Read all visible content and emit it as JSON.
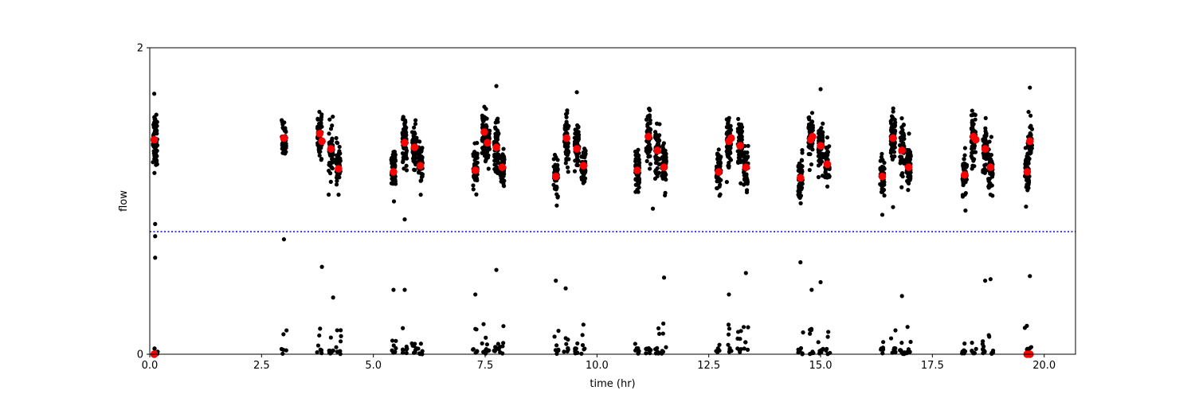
{
  "chart_data": {
    "type": "scatter",
    "title": "",
    "xlabel": "time (hr)",
    "ylabel": "flow",
    "xlim": [
      0,
      20.7
    ],
    "ylim": [
      0,
      2
    ],
    "xticks": [
      0.0,
      2.5,
      5.0,
      7.5,
      10.0,
      12.5,
      15.0,
      17.5,
      20.0
    ],
    "xtick_labels": [
      "0.0",
      "2.5",
      "5.0",
      "7.5",
      "10.0",
      "12.5",
      "15.0",
      "17.5",
      "20.0"
    ],
    "yticks": [
      0,
      2
    ],
    "ytick_labels": [
      "0",
      "2"
    ],
    "grid": false,
    "threshold_line": {
      "y": 0.8,
      "color": "#0000ff",
      "style": "dotted"
    },
    "clusters": [
      {
        "x": 0.12,
        "center": 1.4,
        "spread": 0.09,
        "count": 70,
        "low_count": 4
      },
      {
        "x": 3.0,
        "center": 1.4,
        "spread": 0.06,
        "count": 40,
        "low_count": 6
      },
      {
        "x": 3.8,
        "center": 1.43,
        "spread": 0.07,
        "count": 55,
        "low_count": 8
      },
      {
        "x": 4.05,
        "center": 1.32,
        "spread": 0.08,
        "count": 55,
        "low_count": 8
      },
      {
        "x": 4.22,
        "center": 1.22,
        "spread": 0.07,
        "count": 50,
        "low_count": 8
      },
      {
        "x": 5.45,
        "center": 1.2,
        "spread": 0.07,
        "count": 50,
        "low_count": 7
      },
      {
        "x": 5.7,
        "center": 1.38,
        "spread": 0.07,
        "count": 65,
        "low_count": 8
      },
      {
        "x": 5.92,
        "center": 1.35,
        "spread": 0.08,
        "count": 60,
        "low_count": 8
      },
      {
        "x": 6.05,
        "center": 1.24,
        "spread": 0.07,
        "count": 50,
        "low_count": 6
      },
      {
        "x": 7.28,
        "center": 1.21,
        "spread": 0.07,
        "count": 50,
        "low_count": 7
      },
      {
        "x": 7.48,
        "center": 1.44,
        "spread": 0.07,
        "count": 60,
        "low_count": 7
      },
      {
        "x": 7.55,
        "center": 1.38,
        "spread": 0.07,
        "count": 55,
        "low_count": 6
      },
      {
        "x": 7.75,
        "center": 1.35,
        "spread": 0.08,
        "count": 60,
        "low_count": 8
      },
      {
        "x": 7.88,
        "center": 1.22,
        "spread": 0.07,
        "count": 50,
        "low_count": 6
      },
      {
        "x": 9.08,
        "center": 1.17,
        "spread": 0.07,
        "count": 50,
        "low_count": 7
      },
      {
        "x": 9.32,
        "center": 1.4,
        "spread": 0.08,
        "count": 65,
        "low_count": 8
      },
      {
        "x": 9.55,
        "center": 1.34,
        "spread": 0.08,
        "count": 60,
        "low_count": 8
      },
      {
        "x": 9.7,
        "center": 1.23,
        "spread": 0.07,
        "count": 50,
        "low_count": 6
      },
      {
        "x": 10.9,
        "center": 1.2,
        "spread": 0.07,
        "count": 50,
        "low_count": 7
      },
      {
        "x": 11.15,
        "center": 1.42,
        "spread": 0.08,
        "count": 65,
        "low_count": 8
      },
      {
        "x": 11.35,
        "center": 1.33,
        "spread": 0.08,
        "count": 60,
        "low_count": 8
      },
      {
        "x": 11.5,
        "center": 1.22,
        "spread": 0.07,
        "count": 50,
        "low_count": 6
      },
      {
        "x": 12.72,
        "center": 1.19,
        "spread": 0.07,
        "count": 50,
        "low_count": 7
      },
      {
        "x": 12.95,
        "center": 1.39,
        "spread": 0.08,
        "count": 65,
        "low_count": 8
      },
      {
        "x": 13.2,
        "center": 1.35,
        "spread": 0.08,
        "count": 60,
        "low_count": 8
      },
      {
        "x": 13.33,
        "center": 1.22,
        "spread": 0.07,
        "count": 50,
        "low_count": 6
      },
      {
        "x": 14.55,
        "center": 1.15,
        "spread": 0.07,
        "count": 50,
        "low_count": 7
      },
      {
        "x": 14.78,
        "center": 1.4,
        "spread": 0.08,
        "count": 65,
        "low_count": 8
      },
      {
        "x": 15.0,
        "center": 1.35,
        "spread": 0.08,
        "count": 60,
        "low_count": 8
      },
      {
        "x": 15.15,
        "center": 1.24,
        "spread": 0.07,
        "count": 50,
        "low_count": 6
      },
      {
        "x": 16.38,
        "center": 1.16,
        "spread": 0.07,
        "count": 50,
        "low_count": 7
      },
      {
        "x": 16.62,
        "center": 1.41,
        "spread": 0.08,
        "count": 65,
        "low_count": 8
      },
      {
        "x": 16.82,
        "center": 1.33,
        "spread": 0.08,
        "count": 60,
        "low_count": 8
      },
      {
        "x": 16.97,
        "center": 1.22,
        "spread": 0.07,
        "count": 50,
        "low_count": 6
      },
      {
        "x": 18.22,
        "center": 1.17,
        "spread": 0.07,
        "count": 50,
        "low_count": 7
      },
      {
        "x": 18.42,
        "center": 1.42,
        "spread": 0.08,
        "count": 65,
        "low_count": 8
      },
      {
        "x": 18.68,
        "center": 1.34,
        "spread": 0.08,
        "count": 60,
        "low_count": 8
      },
      {
        "x": 18.8,
        "center": 1.22,
        "spread": 0.07,
        "count": 50,
        "low_count": 6
      },
      {
        "x": 19.62,
        "center": 1.2,
        "spread": 0.07,
        "count": 50,
        "low_count": 6
      },
      {
        "x": 19.68,
        "center": 1.39,
        "spread": 0.07,
        "count": 50,
        "low_count": 5
      }
    ],
    "outliers": [
      {
        "x": 0.12,
        "y": 0.63
      },
      {
        "x": 0.12,
        "y": 0.77
      },
      {
        "x": 0.12,
        "y": 0.85
      },
      {
        "x": 0.1,
        "y": 1.7
      },
      {
        "x": 3.0,
        "y": 0.75
      },
      {
        "x": 3.85,
        "y": 0.57
      },
      {
        "x": 4.1,
        "y": 0.37
      },
      {
        "x": 5.45,
        "y": 0.42
      },
      {
        "x": 5.7,
        "y": 0.42
      },
      {
        "x": 5.7,
        "y": 0.88
      },
      {
        "x": 7.28,
        "y": 0.39
      },
      {
        "x": 7.75,
        "y": 0.55
      },
      {
        "x": 7.75,
        "y": 1.75
      },
      {
        "x": 9.08,
        "y": 0.48
      },
      {
        "x": 9.3,
        "y": 0.43
      },
      {
        "x": 9.55,
        "y": 1.71
      },
      {
        "x": 11.5,
        "y": 0.5
      },
      {
        "x": 11.25,
        "y": 0.95
      },
      {
        "x": 12.95,
        "y": 0.39
      },
      {
        "x": 13.33,
        "y": 0.53
      },
      {
        "x": 14.55,
        "y": 0.6
      },
      {
        "x": 14.8,
        "y": 0.42
      },
      {
        "x": 15.0,
        "y": 0.47
      },
      {
        "x": 15.0,
        "y": 1.73
      },
      {
        "x": 16.38,
        "y": 0.91
      },
      {
        "x": 16.62,
        "y": 0.96
      },
      {
        "x": 16.82,
        "y": 0.38
      },
      {
        "x": 18.68,
        "y": 0.48
      },
      {
        "x": 18.8,
        "y": 0.49
      },
      {
        "x": 19.68,
        "y": 0.51
      },
      {
        "x": 19.68,
        "y": 1.74
      }
    ],
    "red_markers": [
      {
        "x": 0.1,
        "y": 1.4
      },
      {
        "x": 0.1,
        "y": 0.0
      },
      {
        "x": 3.0,
        "y": 1.41
      },
      {
        "x": 3.8,
        "y": 1.44
      },
      {
        "x": 3.85,
        "y": 1.39
      },
      {
        "x": 4.05,
        "y": 1.34
      },
      {
        "x": 4.22,
        "y": 1.21
      },
      {
        "x": 5.45,
        "y": 1.19
      },
      {
        "x": 5.7,
        "y": 1.38
      },
      {
        "x": 5.92,
        "y": 1.35
      },
      {
        "x": 6.05,
        "y": 1.23
      },
      {
        "x": 7.28,
        "y": 1.2
      },
      {
        "x": 7.48,
        "y": 1.45
      },
      {
        "x": 7.55,
        "y": 1.38
      },
      {
        "x": 7.75,
        "y": 1.35
      },
      {
        "x": 7.88,
        "y": 1.22
      },
      {
        "x": 9.08,
        "y": 1.16
      },
      {
        "x": 9.32,
        "y": 1.41
      },
      {
        "x": 9.55,
        "y": 1.34
      },
      {
        "x": 9.7,
        "y": 1.23
      },
      {
        "x": 10.9,
        "y": 1.2
      },
      {
        "x": 11.15,
        "y": 1.42
      },
      {
        "x": 11.35,
        "y": 1.33
      },
      {
        "x": 11.5,
        "y": 1.22
      },
      {
        "x": 12.72,
        "y": 1.19
      },
      {
        "x": 12.95,
        "y": 1.39
      },
      {
        "x": 13.0,
        "y": 1.41
      },
      {
        "x": 13.2,
        "y": 1.36
      },
      {
        "x": 13.33,
        "y": 1.22
      },
      {
        "x": 14.55,
        "y": 1.15
      },
      {
        "x": 14.78,
        "y": 1.4
      },
      {
        "x": 14.82,
        "y": 1.42
      },
      {
        "x": 15.0,
        "y": 1.36
      },
      {
        "x": 15.15,
        "y": 1.24
      },
      {
        "x": 16.38,
        "y": 1.16
      },
      {
        "x": 16.62,
        "y": 1.41
      },
      {
        "x": 16.82,
        "y": 1.33
      },
      {
        "x": 16.97,
        "y": 1.22
      },
      {
        "x": 18.22,
        "y": 1.17
      },
      {
        "x": 18.42,
        "y": 1.42
      },
      {
        "x": 18.47,
        "y": 1.4
      },
      {
        "x": 18.68,
        "y": 1.34
      },
      {
        "x": 18.8,
        "y": 1.22
      },
      {
        "x": 19.62,
        "y": 1.19
      },
      {
        "x": 19.68,
        "y": 1.39
      },
      {
        "x": 19.62,
        "y": 0.0
      },
      {
        "x": 19.68,
        "y": 0.0
      }
    ],
    "marker_colors": {
      "points": "#000000",
      "highlight": "#ff0000"
    }
  }
}
